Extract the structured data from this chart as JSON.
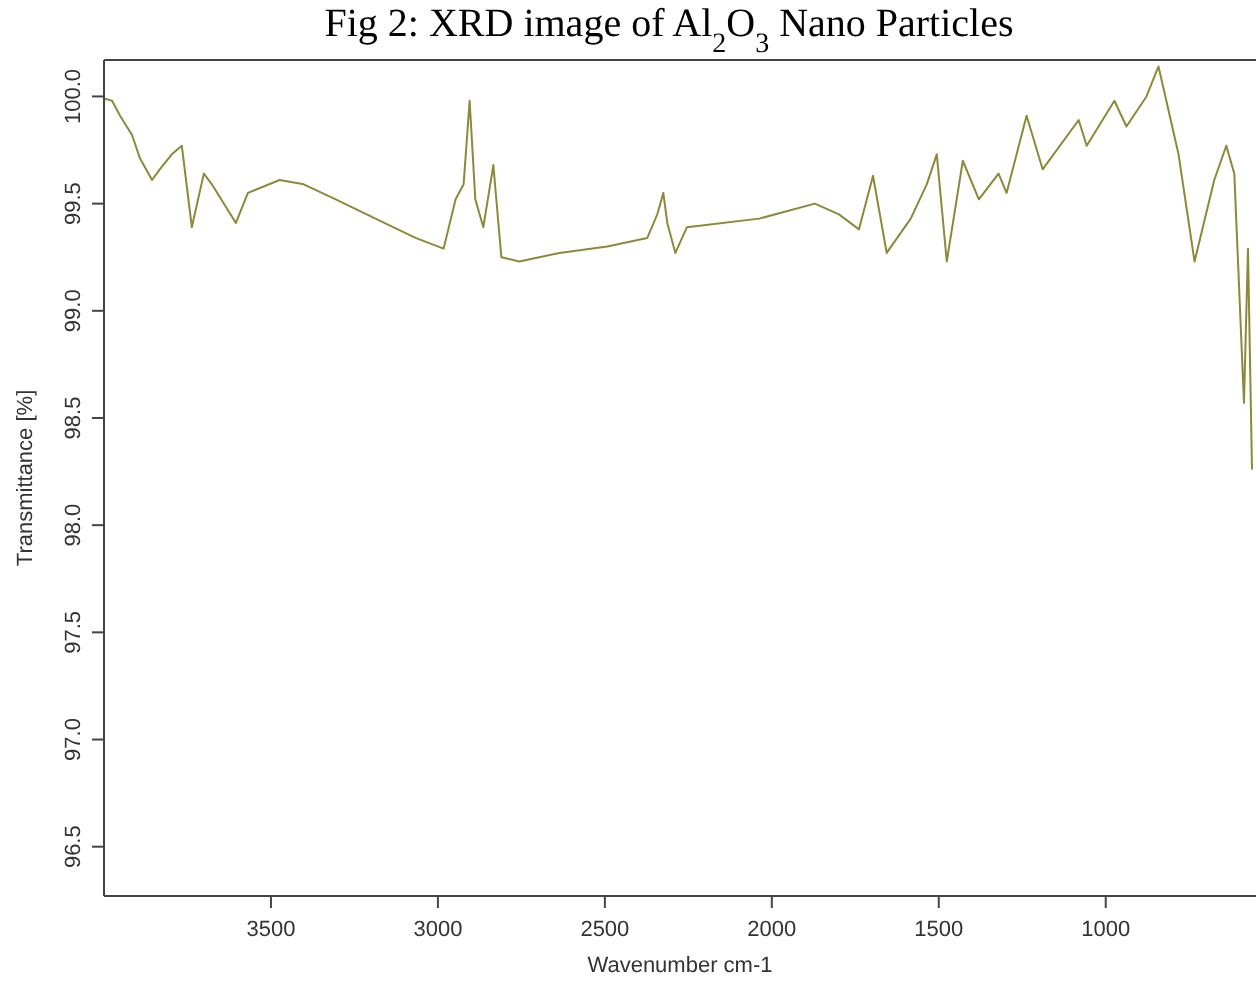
{
  "chart_data": {
    "type": "line",
    "title": "Fig 2: XRD image of Al$_{2}$O$_{3}$ Nano Particles",
    "xlabel": "Wavenumber cm-1",
    "ylabel": "Transmittance [%]",
    "xlim": [
      4000,
      550
    ],
    "ylim": [
      96.27,
      100.17
    ],
    "xticks": [
      3500,
      3000,
      2500,
      2000,
      1500,
      1000
    ],
    "yticks": [
      96.5,
      {
        "value": 97,
        "label": "97.0"
      },
      97.5,
      {
        "value": 98,
        "label": "98.0"
      },
      98.5,
      {
        "value": 99,
        "label": "99.0"
      },
      99.5,
      {
        "value": 100,
        "label": "100.0"
      }
    ],
    "grid": false,
    "series": [
      {
        "color": "#8a8a3a",
        "x": [
          4000,
          3976,
          3952,
          3916,
          3892,
          3856,
          3833,
          3797,
          3767,
          3737,
          3701,
          3677,
          3605,
          3569,
          3474,
          3402,
          3306,
          3187,
          3067,
          2983,
          2947,
          2923,
          2905,
          2888,
          2864,
          2834,
          2810,
          2756,
          2636,
          2493,
          2373,
          2343,
          2325,
          2313,
          2289,
          2254,
          2038,
          1871,
          1799,
          1739,
          1697,
          1656,
          1584,
          1536,
          1506,
          1476,
          1428,
          1380,
          1321,
          1297,
          1237,
          1189,
          1081,
          1057,
          974,
          938,
          878,
          842,
          782,
          734,
          675,
          639,
          615,
          586,
          574,
          562
        ],
        "values": [
          99.99,
          99.98,
          99.91,
          99.82,
          99.71,
          99.61,
          99.66,
          99.73,
          99.77,
          99.39,
          99.64,
          99.59,
          99.41,
          99.55,
          99.61,
          99.59,
          99.52,
          99.43,
          99.34,
          99.29,
          99.52,
          99.59,
          99.98,
          99.52,
          99.39,
          99.68,
          99.25,
          99.23,
          99.27,
          99.3,
          99.34,
          99.45,
          99.55,
          99.41,
          99.27,
          99.39,
          99.43,
          99.5,
          99.45,
          99.38,
          99.63,
          99.27,
          99.43,
          99.59,
          99.73,
          99.23,
          99.7,
          99.52,
          99.64,
          99.55,
          99.91,
          99.66,
          99.89,
          99.77,
          99.98,
          99.86,
          100,
          100.14,
          99.73,
          99.23,
          99.61,
          99.77,
          99.64,
          98.57,
          99.29,
          98.26
        ]
      }
    ]
  }
}
